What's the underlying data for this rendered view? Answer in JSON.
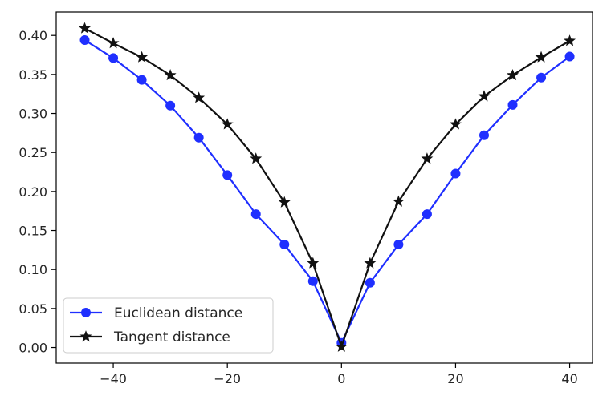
{
  "chart_data": {
    "type": "line",
    "title": "",
    "xlabel": "",
    "ylabel": "",
    "xlim": [
      -50,
      44
    ],
    "ylim": [
      -0.02,
      0.43
    ],
    "x_ticks": [
      -40,
      -20,
      0,
      20,
      40
    ],
    "x_tick_labels": [
      "−40",
      "−20",
      "0",
      "20",
      "40"
    ],
    "y_ticks": [
      0.0,
      0.05,
      0.1,
      0.15,
      0.2,
      0.25,
      0.3,
      0.35,
      0.4
    ],
    "y_tick_labels": [
      "0.00",
      "0.05",
      "0.10",
      "0.15",
      "0.20",
      "0.25",
      "0.30",
      "0.35",
      "0.40"
    ],
    "grid": false,
    "legend_position": "lower-left",
    "x": [
      -45,
      -40,
      -35,
      -30,
      -25,
      -20,
      -15,
      -10,
      -5,
      0,
      5,
      10,
      15,
      20,
      25,
      30,
      35,
      40
    ],
    "series": [
      {
        "name": "Euclidean distance",
        "color": "#1f2fff",
        "marker": "circle",
        "values": [
          0.394,
          0.371,
          0.343,
          0.31,
          0.269,
          0.221,
          0.171,
          0.132,
          0.085,
          0.006,
          0.083,
          0.132,
          0.171,
          0.223,
          0.272,
          0.311,
          0.346,
          0.373
        ]
      },
      {
        "name": "Tangent distance",
        "color": "#111111",
        "marker": "star",
        "values": [
          0.409,
          0.39,
          0.372,
          0.349,
          0.32,
          0.286,
          0.242,
          0.186,
          0.108,
          0.001,
          0.108,
          0.187,
          0.242,
          0.286,
          0.322,
          0.349,
          0.372,
          0.393
        ]
      }
    ]
  }
}
